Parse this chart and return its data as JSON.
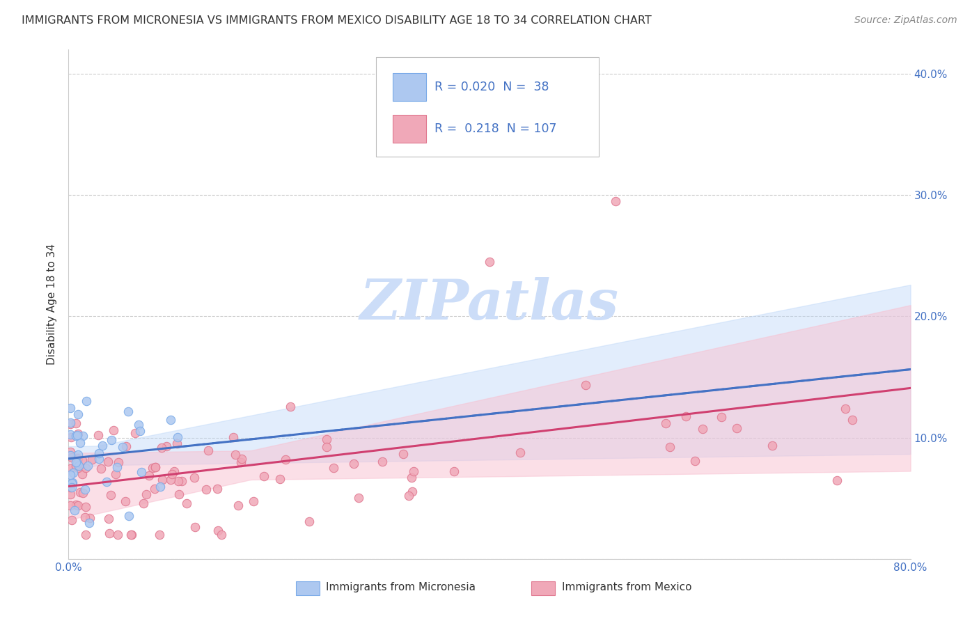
{
  "title": "IMMIGRANTS FROM MICRONESIA VS IMMIGRANTS FROM MEXICO DISABILITY AGE 18 TO 34 CORRELATION CHART",
  "source": "Source: ZipAtlas.com",
  "ylabel": "Disability Age 18 to 34",
  "x_min": 0.0,
  "x_max": 0.8,
  "y_min": 0.0,
  "y_max": 0.42,
  "grid_color": "#cccccc",
  "background_color": "#ffffff",
  "legend_R_micronesia": "0.020",
  "legend_N_micronesia": "38",
  "legend_R_mexico": "0.218",
  "legend_N_mexico": "107",
  "micronesia_color": "#adc8f0",
  "micronesia_edge_color": "#7aaae8",
  "mexico_color": "#f0a8b8",
  "mexico_edge_color": "#e07890",
  "trend_micronesia_color": "#4472c4",
  "trend_mexico_color": "#d04070",
  "ci_micronesia_color": "#b8d4f8",
  "ci_mexico_color": "#f8c0d0",
  "tick_color": "#4472c4",
  "title_color": "#333333",
  "source_color": "#888888",
  "watermark_color": "#ccddf8"
}
